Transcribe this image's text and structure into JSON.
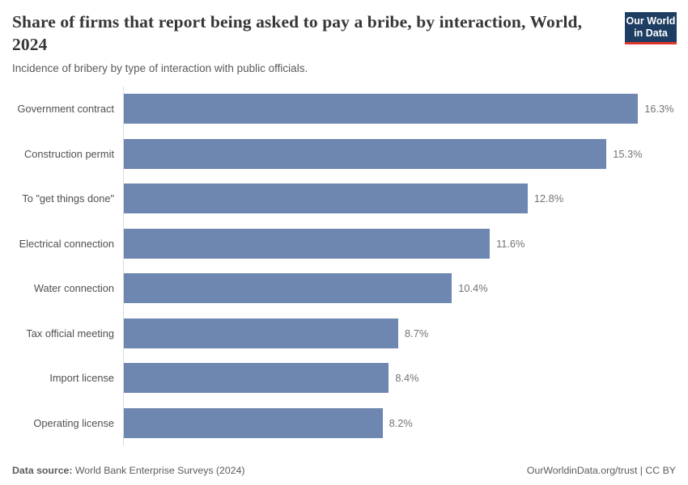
{
  "colors": {
    "bar": "#6e87b1",
    "logo_navy": "#1d3d63",
    "logo_red": "#e0362c",
    "axis_line": "#dcdcdc"
  },
  "header": {
    "title": "Share of firms that report being asked to pay a bribe, by interaction, World, 2024",
    "subtitle": "Incidence of bribery by type of interaction with public officials."
  },
  "logo": {
    "line1": "Our World",
    "line2": "in Data"
  },
  "chart_data": {
    "type": "bar",
    "orientation": "horizontal",
    "title": "Share of firms that report being asked to pay a bribe, by interaction, World, 2024",
    "subtitle": "Incidence of bribery by type of interaction with public officials.",
    "categories": [
      "Government contract",
      "Construction permit",
      "To \"get things done\"",
      "Electrical connection",
      "Water connection",
      "Tax official meeting",
      "Import license",
      "Operating license"
    ],
    "values": [
      16.3,
      15.3,
      12.8,
      11.6,
      10.4,
      8.7,
      8.4,
      8.2
    ],
    "value_labels": [
      "16.3%",
      "15.3%",
      "12.8%",
      "11.6%",
      "10.4%",
      "8.7%",
      "8.4%",
      "8.2%"
    ],
    "xlabel": "",
    "ylabel": "",
    "xlim": [
      0,
      17.5
    ],
    "grid": false,
    "legend": false,
    "bar_color": "#6e87b1"
  },
  "footer": {
    "datasource_label": "Data source:",
    "datasource_text": " World Bank Enterprise Surveys (2024)",
    "right_text": "OurWorldinData.org/trust | CC BY"
  }
}
